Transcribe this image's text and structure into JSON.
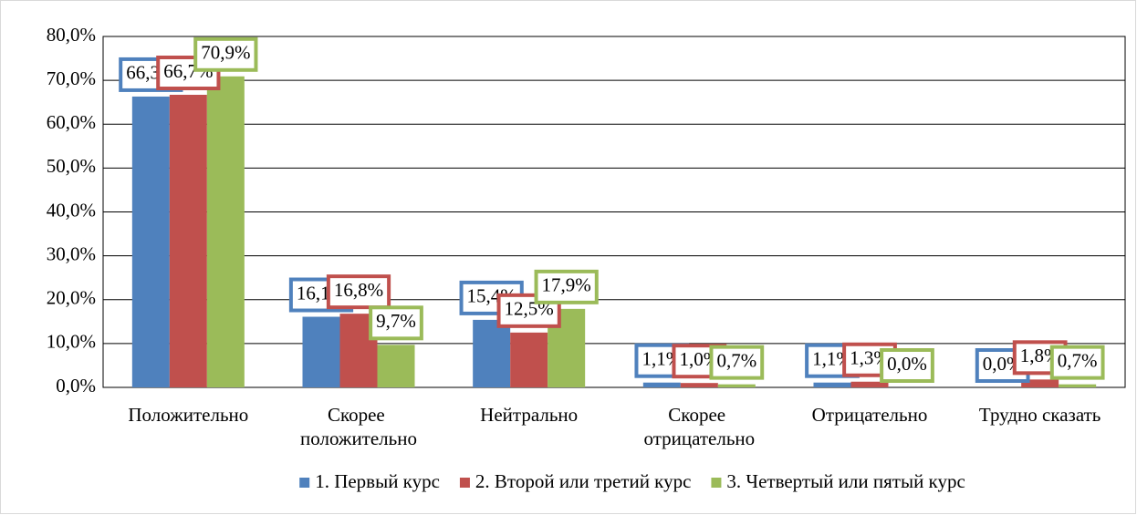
{
  "chart_data": {
    "type": "bar",
    "categories": [
      "Положительно",
      "Скорее положительно",
      "Нейтрально",
      "Скорее отрицательно",
      "Отрицательно",
      "Трудно сказать"
    ],
    "series": [
      {
        "name": "1. Первый курс",
        "color": "#4f81bd",
        "values": [
          66.3,
          16.1,
          15.4,
          1.1,
          1.1,
          0.0
        ],
        "value_labels": [
          "66,3%",
          "16,1%",
          "15,4%",
          "1,1%",
          "1,1%",
          "0,0%"
        ]
      },
      {
        "name": "2. Второй или третий  курс",
        "color": "#c0504d",
        "values": [
          66.7,
          16.8,
          12.5,
          1.0,
          1.3,
          1.8
        ],
        "value_labels": [
          "66,7%",
          "16,8%",
          "12,5%",
          "1,0%",
          "1,3%",
          "1,8%"
        ]
      },
      {
        "name": "3. Четвертый или пятый курс",
        "color": "#9bbb59",
        "values": [
          70.9,
          9.7,
          17.9,
          0.7,
          0.0,
          0.7
        ],
        "value_labels": [
          "70,9%",
          "9,7%",
          "17,9%",
          "0,7%",
          "0,0%",
          "0,7%"
        ]
      }
    ],
    "ylim": [
      0,
      80
    ],
    "yticks": [
      {
        "value": 0,
        "label": "0,0%"
      },
      {
        "value": 10,
        "label": "10,0%"
      },
      {
        "value": 20,
        "label": "20,0%"
      },
      {
        "value": 30,
        "label": "30,0%"
      },
      {
        "value": 40,
        "label": "40,0%"
      },
      {
        "value": 50,
        "label": "50,0%"
      },
      {
        "value": 60,
        "label": "60,0%"
      },
      {
        "value": 70,
        "label": "70,0%"
      },
      {
        "value": 80,
        "label": "80,0%"
      }
    ],
    "grid": true,
    "legend": "bottom"
  }
}
